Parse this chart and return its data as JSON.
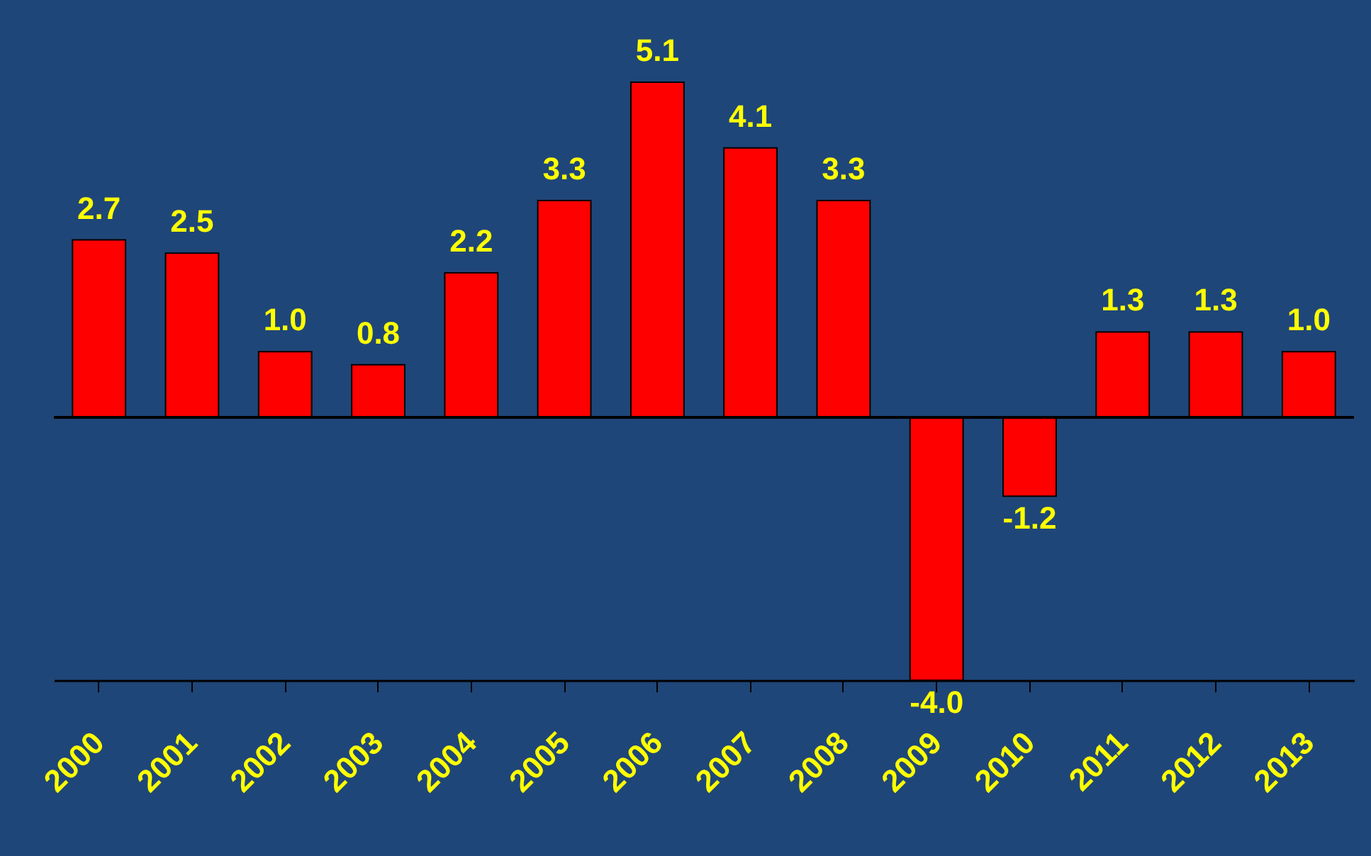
{
  "chart_data": {
    "type": "bar",
    "categories": [
      "2000",
      "2001",
      "2002",
      "2003",
      "2004",
      "2005",
      "2006",
      "2007",
      "2008",
      "2009",
      "2010",
      "2011",
      "2012",
      "2013"
    ],
    "values": [
      2.7,
      2.5,
      1.0,
      0.8,
      2.2,
      3.3,
      5.1,
      4.1,
      3.3,
      -4.0,
      -1.2,
      1.3,
      1.3,
      1.0
    ],
    "value_labels": [
      "2.7",
      "2.5",
      "1.0",
      "0.8",
      "2.2",
      "3.3",
      "5.1",
      "4.1",
      "3.3",
      "-4.0",
      "-1.2",
      "1.3",
      "1.3",
      "1.0"
    ],
    "color": "#ff0000"
  }
}
